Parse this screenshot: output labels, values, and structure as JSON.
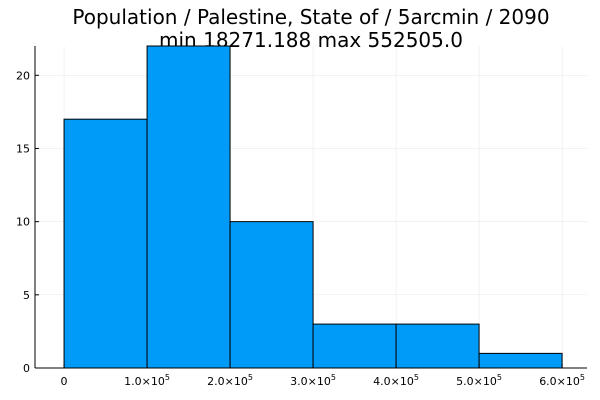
{
  "chart_data": {
    "type": "bar",
    "title": "Population / Palestine, State of / 5arcmin / 2090",
    "subtitle": "min 18271.188  max 552505.0",
    "xlabel": "",
    "ylabel": "",
    "bins": [
      {
        "x0": 0,
        "x1": 100000,
        "count": 17
      },
      {
        "x0": 100000,
        "x1": 200000,
        "count": 22
      },
      {
        "x0": 200000,
        "x1": 300000,
        "count": 10
      },
      {
        "x0": 300000,
        "x1": 400000,
        "count": 3
      },
      {
        "x0": 400000,
        "x1": 500000,
        "count": 3
      },
      {
        "x0": 500000,
        "x1": 600000,
        "count": 1
      }
    ],
    "xlim": [
      -35000,
      630000
    ],
    "ylim": [
      0,
      22
    ],
    "x_ticks": [
      {
        "value": 0,
        "mantissa": "0",
        "exponent": ""
      },
      {
        "value": 100000,
        "mantissa": "1.0×10",
        "exponent": "5"
      },
      {
        "value": 200000,
        "mantissa": "2.0×10",
        "exponent": "5"
      },
      {
        "value": 300000,
        "mantissa": "3.0×10",
        "exponent": "5"
      },
      {
        "value": 400000,
        "mantissa": "4.0×10",
        "exponent": "5"
      },
      {
        "value": 500000,
        "mantissa": "5.0×10",
        "exponent": "5"
      },
      {
        "value": 600000,
        "mantissa": "6.0×10",
        "exponent": "5"
      }
    ],
    "y_ticks": [
      0,
      5,
      10,
      15,
      20
    ],
    "bar_color": "#009AF9",
    "bar_edge_color": "#000000",
    "grid": true,
    "legend": "none"
  }
}
